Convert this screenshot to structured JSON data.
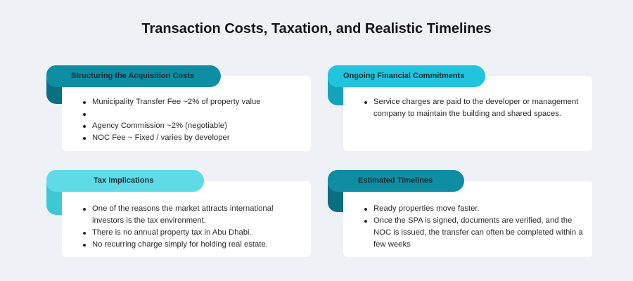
{
  "title": "Transaction Costs, Taxation, and Realistic Timelines",
  "colors": {
    "background": "#eef2f7",
    "tab_dark_teal": "#0f8da3",
    "tab_cyan": "#22c3dd",
    "tab_light_cyan": "#5fdbe8",
    "card": "#ffffff"
  },
  "cards": [
    {
      "heading": "Structuring the Acquisition Costs",
      "bullets": [
        "Municipality Transfer Fee ~2% of property value",
        "",
        "Agency Commission ~2% (negotiable)",
        "NOC Fee ~ Fixed / varies by developer"
      ]
    },
    {
      "heading": "Ongoing Financial Commitments",
      "bullets": [
        "Service charges are paid to the developer or management company to maintain the building and shared spaces."
      ]
    },
    {
      "heading": "Tax Implications",
      "bullets": [
        "One of the reasons the market attracts international investors is the tax environment.",
        "There is no annual property tax in Abu Dhabi.",
        "No recurring charge simply for holding real estate."
      ]
    },
    {
      "heading": "Estimated Timelines",
      "bullets": [
        "Ready properties move faster.",
        "Once the SPA is signed, documents are verified, and the NOC is issued, the transfer can often be completed within a few weeks"
      ]
    }
  ]
}
